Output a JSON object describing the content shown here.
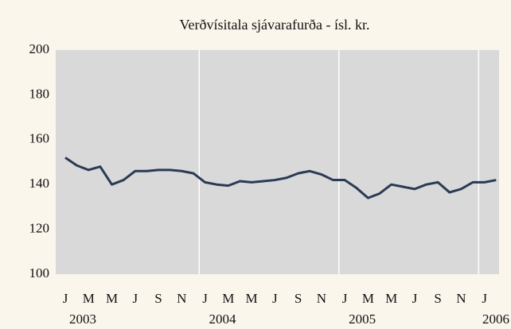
{
  "chart_data": {
    "type": "line",
    "title": "Verðvísitala sjávarafurða - ísl. kr.",
    "categories": [
      "J",
      null,
      "M",
      null,
      "M",
      null,
      "J",
      null,
      "S",
      null,
      "N",
      null,
      "J",
      null,
      "M",
      null,
      "M",
      null,
      "J",
      null,
      "S",
      null,
      "N",
      null,
      "J",
      null,
      "M",
      null,
      "M",
      null,
      "J",
      null,
      "S",
      null,
      "N",
      null,
      "J",
      null
    ],
    "years": [
      "2003",
      "2004",
      "2005",
      "2006"
    ],
    "series": [
      {
        "color": "#2b3a55",
        "values": [
          152,
          148.5,
          146.5,
          148,
          140,
          142,
          146,
          146,
          146.5,
          146.5,
          146,
          145,
          141,
          140,
          139.5,
          141.5,
          141,
          141.5,
          142,
          143,
          145,
          146,
          144.5,
          142,
          142,
          138.5,
          134,
          136,
          140,
          139,
          138,
          140,
          141,
          136.5,
          138,
          141,
          141,
          142
        ]
      }
    ],
    "ylim": [
      100,
      200
    ],
    "yticks": [
      100,
      120,
      140,
      160,
      180,
      200
    ],
    "plot_color": "#d9d9d9"
  }
}
